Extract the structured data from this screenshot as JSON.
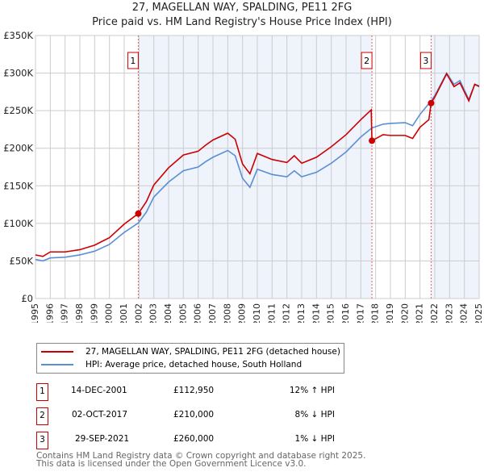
{
  "chart_data": {
    "type": "line",
    "title": "27, MAGELLAN WAY, SPALDING, PE11 2FG",
    "subtitle": "Price paid vs. HM Land Registry's House Price Index (HPI)",
    "ylim": [
      0,
      350000
    ],
    "xlim": [
      1995,
      2025
    ],
    "yticks": [
      {
        "v": 0,
        "label": "£0"
      },
      {
        "v": 50000,
        "label": "£50K"
      },
      {
        "v": 100000,
        "label": "£100K"
      },
      {
        "v": 150000,
        "label": "£150K"
      },
      {
        "v": 200000,
        "label": "£200K"
      },
      {
        "v": 250000,
        "label": "£250K"
      },
      {
        "v": 300000,
        "label": "£300K"
      },
      {
        "v": 350000,
        "label": "£350K"
      }
    ],
    "xticks": [
      "1995",
      "1996",
      "1997",
      "1998",
      "1999",
      "2000",
      "2001",
      "2002",
      "2003",
      "2004",
      "2005",
      "2006",
      "2007",
      "2008",
      "2009",
      "2010",
      "2011",
      "2012",
      "2013",
      "2014",
      "2015",
      "2016",
      "2017",
      "2018",
      "2019",
      "2020",
      "2021",
      "2022",
      "2023",
      "2024",
      "2025"
    ],
    "grid": true,
    "series": [
      {
        "name": "27, MAGELLAN WAY, SPALDING, PE11 2FG (detached house)",
        "color": "#cc0000",
        "x": [
          1995,
          1995.5,
          1996,
          1997,
          1998,
          1999,
          2000,
          2001,
          2001.95,
          2002.5,
          2003,
          2004,
          2005,
          2006,
          2006.5,
          2007,
          2008,
          2008.5,
          2009,
          2009.5,
          2010,
          2011,
          2012,
          2012.5,
          2013,
          2014,
          2015,
          2016,
          2017,
          2017.7,
          2017.75,
          2018.5,
          2019,
          2020,
          2020.5,
          2021,
          2021.6,
          2021.75,
          2022,
          2022.8,
          2023.3,
          2023.7,
          2024.3,
          2024.7,
          2025
        ],
        "y": [
          58000,
          56000,
          62000,
          62000,
          65000,
          71000,
          81000,
          99000,
          112950,
          129000,
          151000,
          174000,
          191000,
          196000,
          204000,
          211000,
          220000,
          212000,
          179000,
          166000,
          193000,
          185000,
          181000,
          190000,
          180000,
          188000,
          202000,
          218000,
          238000,
          251000,
          210000,
          218000,
          217000,
          217000,
          213000,
          228000,
          238000,
          260000,
          268000,
          299000,
          282000,
          287000,
          263000,
          285000,
          282000
        ]
      },
      {
        "name": "HPI: Average price, detached house, South Holland",
        "color": "#5b8fd4",
        "x": [
          1995,
          1995.5,
          1996,
          1997,
          1998,
          1999,
          2000,
          2001,
          2001.95,
          2002.5,
          2003,
          2004,
          2005,
          2006,
          2006.5,
          2007,
          2008,
          2008.5,
          2009,
          2009.5,
          2010,
          2011,
          2012,
          2012.5,
          2013,
          2014,
          2015,
          2016,
          2017,
          2017.75,
          2018.5,
          2019,
          2020,
          2020.5,
          2021,
          2021.75,
          2022,
          2022.8,
          2023.3,
          2023.7,
          2024.3,
          2024.7,
          2025
        ],
        "y": [
          52000,
          50000,
          54000,
          55000,
          58000,
          63000,
          72000,
          88000,
          100500,
          115000,
          135000,
          155000,
          170000,
          175000,
          182000,
          188000,
          197000,
          190000,
          160000,
          148000,
          172000,
          165000,
          162000,
          170000,
          162000,
          168000,
          180000,
          195000,
          215000,
          227000,
          232000,
          233000,
          234000,
          230000,
          245000,
          263000,
          270000,
          300000,
          285000,
          290000,
          265000,
          285000,
          283000
        ]
      }
    ],
    "sales": [
      {
        "n": "1",
        "x": 2001.95,
        "y": 112950,
        "date": "14-DEC-2001",
        "price": "£112,950",
        "hpi": "12% ↑ HPI"
      },
      {
        "n": "2",
        "x": 2017.75,
        "y": 210000,
        "date": "02-OCT-2017",
        "price": "£210,000",
        "hpi": "8% ↓ HPI"
      },
      {
        "n": "3",
        "x": 2021.75,
        "y": 260000,
        "date": "29-SEP-2021",
        "price": "£260,000",
        "hpi": "1% ↓ HPI"
      }
    ]
  },
  "footer": {
    "line1": "Contains HM Land Registry data © Crown copyright and database right 2025.",
    "line2": "This data is licensed under the Open Government Licence v3.0."
  }
}
